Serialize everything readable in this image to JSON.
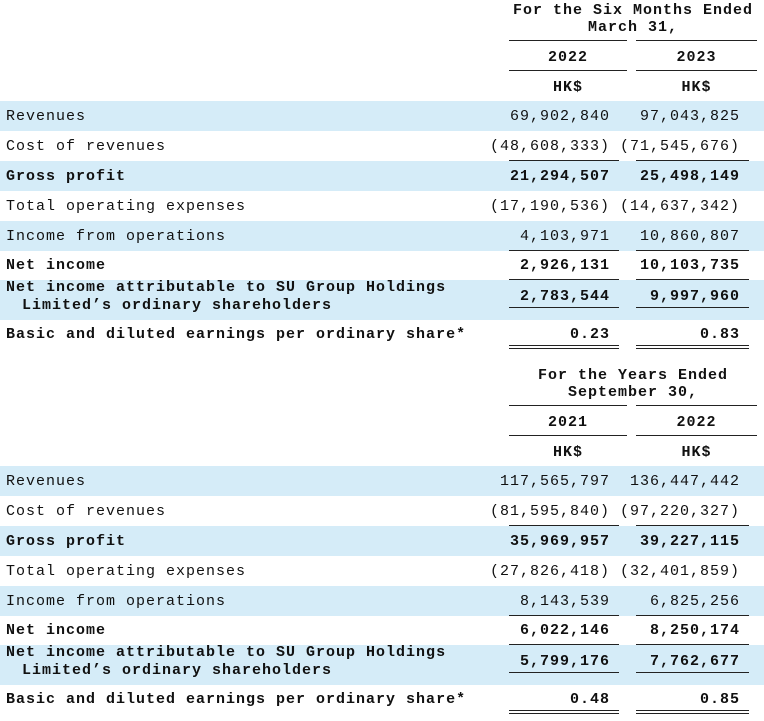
{
  "sections": [
    {
      "header": [
        "For the Six Months Ended",
        "March 31,"
      ],
      "years": [
        "2022",
        "2023"
      ],
      "currency": [
        "HK$",
        "HK$"
      ],
      "rows": [
        {
          "label": [
            "Revenues"
          ],
          "values": [
            "69,902,840",
            "97,043,825"
          ]
        },
        {
          "label": [
            "Cost of revenues"
          ],
          "values": [
            "(48,608,333)",
            "(71,545,676)"
          ]
        },
        {
          "label": [
            "Gross profit"
          ],
          "values": [
            "21,294,507",
            "25,498,149"
          ]
        },
        {
          "label": [
            "Total operating expenses"
          ],
          "values": [
            "(17,190,536)",
            "(14,637,342)"
          ]
        },
        {
          "label": [
            "Income from operations"
          ],
          "values": [
            "4,103,971",
            "10,860,807"
          ]
        },
        {
          "label": [
            "Net income"
          ],
          "values": [
            "2,926,131",
            "10,103,735"
          ]
        },
        {
          "label": [
            "Net income attributable to SU Group Holdings",
            "Limited’s ordinary shareholders"
          ],
          "values": [
            "2,783,544",
            "9,997,960"
          ]
        },
        {
          "label": [
            "Basic and diluted earnings per ordinary share*"
          ],
          "values": [
            "0.23",
            "0.83"
          ]
        }
      ]
    },
    {
      "header": [
        "For the Years Ended",
        "September 30,"
      ],
      "years": [
        "2021",
        "2022"
      ],
      "currency": [
        "HK$",
        "HK$"
      ],
      "rows": [
        {
          "label": [
            "Revenues"
          ],
          "values": [
            "117,565,797",
            "136,447,442"
          ]
        },
        {
          "label": [
            "Cost of revenues"
          ],
          "values": [
            "(81,595,840)",
            "(97,220,327)"
          ]
        },
        {
          "label": [
            "Gross profit"
          ],
          "values": [
            "35,969,957",
            "39,227,115"
          ]
        },
        {
          "label": [
            "Total operating expenses"
          ],
          "values": [
            "(27,826,418)",
            "(32,401,859)"
          ]
        },
        {
          "label": [
            "Income from operations"
          ],
          "values": [
            "8,143,539",
            "6,825,256"
          ]
        },
        {
          "label": [
            "Net income"
          ],
          "values": [
            "6,022,146",
            "8,250,174"
          ]
        },
        {
          "label": [
            "Net income attributable to SU Group Holdings",
            "Limited’s ordinary shareholders"
          ],
          "values": [
            "5,799,176",
            "7,762,677"
          ]
        },
        {
          "label": [
            "Basic and diluted earnings per ordinary share*"
          ],
          "values": [
            "0.48",
            "0.85"
          ]
        }
      ]
    }
  ]
}
